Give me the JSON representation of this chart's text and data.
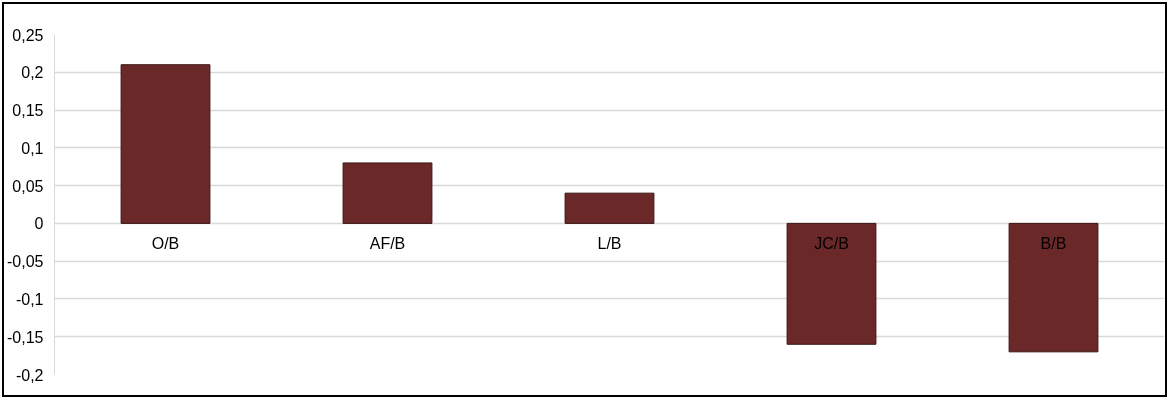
{
  "chart_data": {
    "type": "bar",
    "categories": [
      "O/B",
      "AF/B",
      "L/B",
      "JC/B",
      "B/B"
    ],
    "values": [
      0.21,
      0.08,
      0.04,
      -0.16,
      -0.17
    ],
    "color": "#6b2828",
    "ylim": [
      -0.2,
      0.25
    ],
    "yticks": [
      {
        "value": -0.2,
        "label": "-0,2"
      },
      {
        "value": -0.15,
        "label": "-0,15"
      },
      {
        "value": -0.1,
        "label": "-0,1"
      },
      {
        "value": -0.05,
        "label": "-0,05"
      },
      {
        "value": 0,
        "label": "0"
      },
      {
        "value": 0.05,
        "label": "0,05"
      },
      {
        "value": 0.1,
        "label": "0,1"
      },
      {
        "value": 0.15,
        "label": "0,15"
      },
      {
        "value": 0.2,
        "label": "0,2"
      },
      {
        "value": 0.25,
        "label": "0,25"
      }
    ],
    "grid": "y"
  }
}
